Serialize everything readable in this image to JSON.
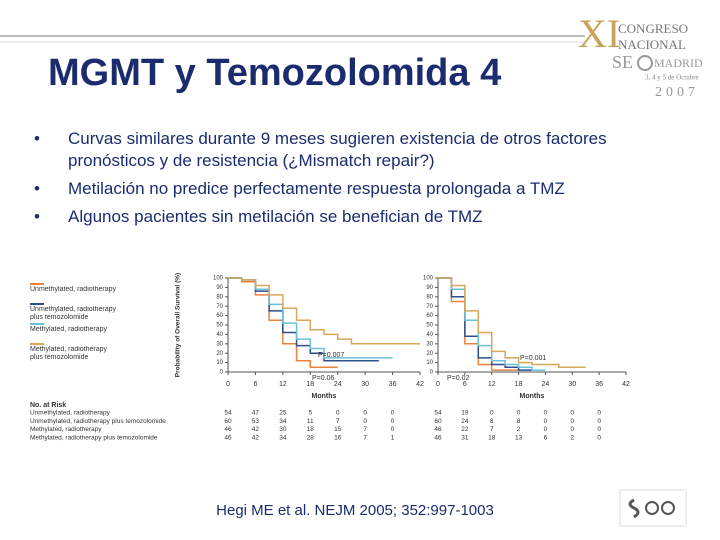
{
  "header": {
    "title": "MGMT y Temozolomida 4",
    "logo": {
      "numeral": "XI",
      "line1": "CONGRESO",
      "line2": "NACIONAL",
      "brand": "SE",
      "city": "MADRID",
      "dates": "3, 4 y 5 de Octubre",
      "year": "2007"
    }
  },
  "bullets": [
    "Curvas similares durante 9 meses sugieren existencia de otros factores pronósticos y de resistencia (¿Mismatch repair?)",
    "Metilación no predice perfectamente respuesta prolongada a TMZ",
    "Algunos pacientes sin metilación se benefician de TMZ"
  ],
  "chart_data": [
    {
      "type": "line",
      "step": true,
      "xlabel": "Months",
      "ylabel": "Probability of Overall Survival (%)",
      "x": [
        0,
        3,
        6,
        9,
        12,
        15,
        18,
        21,
        24,
        27,
        30,
        33,
        36,
        39,
        42
      ],
      "xlim": [
        0,
        42
      ],
      "xticks": [
        0,
        6,
        12,
        18,
        24,
        30,
        36,
        42
      ],
      "ylim": [
        0,
        100
      ],
      "yticks": [
        0,
        10,
        20,
        30,
        40,
        50,
        60,
        70,
        80,
        90,
        100
      ],
      "annotations": [
        "P=0.007",
        "P=0.06"
      ],
      "series": [
        {
          "name": "Unmethylated, radiotherapy",
          "color": "#e8843c",
          "values": [
            100,
            96,
            82,
            55,
            30,
            12,
            5,
            5,
            5,
            null,
            null,
            null,
            null,
            null,
            null
          ]
        },
        {
          "name": "Unmethylated, radiotherapy plus temozolomide",
          "color": "#2d4f8a",
          "values": [
            100,
            98,
            86,
            65,
            42,
            28,
            20,
            12,
            12,
            12,
            12,
            12,
            null,
            null,
            null
          ]
        },
        {
          "name": "Methylated, radiotherapy",
          "color": "#6cc0d8",
          "values": [
            100,
            98,
            88,
            72,
            52,
            35,
            25,
            15,
            15,
            15,
            15,
            15,
            15,
            null,
            null
          ]
        },
        {
          "name": "Methylated, radiotherapy plus temozolomide",
          "color": "#d9a75a",
          "values": [
            100,
            98,
            92,
            82,
            68,
            55,
            45,
            40,
            35,
            30,
            30,
            30,
            30,
            30,
            30
          ]
        }
      ]
    },
    {
      "type": "line",
      "step": true,
      "xlabel": "Months",
      "x": [
        0,
        3,
        6,
        9,
        12,
        15,
        18,
        21,
        24,
        27,
        30,
        33,
        36,
        39,
        42
      ],
      "xlim": [
        0,
        42
      ],
      "xticks": [
        0,
        6,
        12,
        18,
        24,
        30,
        36,
        42
      ],
      "ylim": [
        0,
        100
      ],
      "yticks": [
        0,
        10,
        20,
        30,
        40,
        50,
        60,
        70,
        80,
        90,
        100
      ],
      "annotations": [
        "P=0.001",
        "P=0.02"
      ],
      "series": [
        {
          "color": "#e8843c",
          "values": [
            100,
            75,
            30,
            8,
            2,
            2,
            2,
            null,
            null,
            null,
            null,
            null,
            null,
            null,
            null
          ]
        },
        {
          "color": "#2d4f8a",
          "values": [
            100,
            80,
            38,
            15,
            8,
            5,
            2,
            2,
            null,
            null,
            null,
            null,
            null,
            null,
            null
          ]
        },
        {
          "color": "#6cc0d8",
          "values": [
            100,
            88,
            55,
            28,
            12,
            8,
            5,
            2,
            2,
            null,
            null,
            null,
            null,
            null,
            null
          ]
        },
        {
          "color": "#d9a75a",
          "values": [
            100,
            92,
            65,
            42,
            22,
            15,
            10,
            8,
            8,
            5,
            5,
            5,
            null,
            null,
            null
          ]
        }
      ]
    }
  ],
  "risk_table": {
    "title": "No. at Risk",
    "rows": [
      {
        "label": "Unmethylated, radiotherapy",
        "left": [
          "54",
          "47",
          "25",
          "5",
          "0",
          "0",
          "0"
        ],
        "right": [
          "54",
          "19",
          "0",
          "0",
          "0",
          "0",
          "0"
        ]
      },
      {
        "label": "Unmethylated, radiotherapy plus temozolomide",
        "left": [
          "60",
          "53",
          "34",
          "11",
          "7",
          "0",
          "0"
        ],
        "right": [
          "60",
          "24",
          "8",
          "8",
          "0",
          "0",
          "0"
        ]
      },
      {
        "label": "Methylated, radiotherapy",
        "left": [
          "46",
          "42",
          "30",
          "18",
          "15",
          "7",
          "0"
        ],
        "right": [
          "46",
          "22",
          "7",
          "2",
          "0",
          "0",
          "0"
        ]
      },
      {
        "label": "Methylated, radiotherapy plus temozolomide",
        "left": [
          "46",
          "42",
          "34",
          "28",
          "16",
          "7",
          "1"
        ],
        "right": [
          "46",
          "31",
          "18",
          "13",
          "6",
          "2",
          "0"
        ]
      }
    ]
  },
  "citation": "Hegi ME et al. NEJM 2005; 352:997-1003"
}
